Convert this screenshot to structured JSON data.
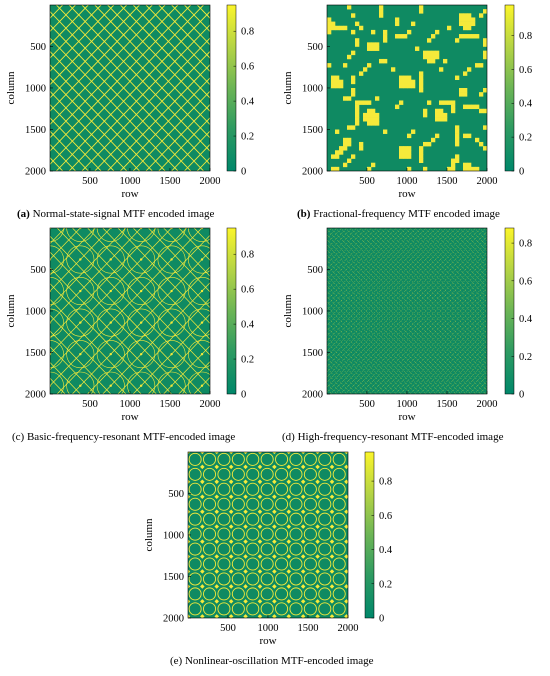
{
  "colors": {
    "background_green": "#0f8a62",
    "line_yellow": "#f5ea3b",
    "colorbar_bottom": "#00876a",
    "colorbar_top": "#fbf52a"
  },
  "chart_data": [
    {
      "type": "heatmap",
      "panel": "a",
      "caption_tag": "(a)",
      "caption_text": "Normal-state-signal MTF encoded image",
      "xlabel": "row",
      "ylabel": "column",
      "x_ticks": [
        "500",
        "1000",
        "1500",
        "2000"
      ],
      "y_ticks": [
        "500",
        "1000",
        "1500",
        "2000"
      ],
      "xlim": [
        1,
        2000
      ],
      "ylim": [
        1,
        2000
      ],
      "colorbar_ticks": [
        "0",
        "0.2",
        "0.4",
        "0.6",
        "0.8"
      ],
      "colorbar_range": [
        0,
        0.95
      ],
      "pattern": "diagonal-lattice",
      "lattice_period": 160
    },
    {
      "type": "heatmap",
      "panel": "b",
      "caption_tag": "(b)",
      "caption_text": "Fractional-frequency MTF encoded image",
      "xlabel": "row",
      "ylabel": "column",
      "x_ticks": [
        "500",
        "1000",
        "1500",
        "2000"
      ],
      "y_ticks": [
        "500",
        "1000",
        "1500",
        "2000"
      ],
      "xlim": [
        1,
        2000
      ],
      "ylim": [
        1,
        2000
      ],
      "colorbar_ticks": [
        "0",
        "0.2",
        "0.4",
        "0.6",
        "0.8"
      ],
      "colorbar_range": [
        0,
        0.98
      ],
      "pattern": "contour-blobs",
      "frequencies": [
        1.3,
        0.7,
        2.1
      ]
    },
    {
      "type": "heatmap",
      "panel": "c",
      "caption_tag": "(c)",
      "caption_text": "Basic-frequency-resonant MTF-encoded image",
      "xlabel": "row",
      "ylabel": "column",
      "x_ticks": [
        "500",
        "1000",
        "1500",
        "2000"
      ],
      "y_ticks": [
        "500",
        "1000",
        "1500",
        "2000"
      ],
      "xlim": [
        1,
        2000
      ],
      "ylim": [
        1,
        2000
      ],
      "colorbar_ticks": [
        "0",
        "0.2",
        "0.4",
        "0.6",
        "0.8"
      ],
      "colorbar_range": [
        0,
        0.95
      ],
      "pattern": "wavy-lattice",
      "lattice_period": 190
    },
    {
      "type": "heatmap",
      "panel": "d",
      "caption_tag": "(d)",
      "caption_text": "High-frequency-resonant MTF-encoded image",
      "xlabel": "row",
      "ylabel": "column",
      "x_ticks": [
        "500",
        "1000",
        "1500",
        "2000"
      ],
      "y_ticks": [
        "500",
        "1000",
        "1500",
        "2000"
      ],
      "xlim": [
        1,
        2000
      ],
      "ylim": [
        1,
        2000
      ],
      "colorbar_ticks": [
        "0",
        "0.2",
        "0.4",
        "0.6",
        "0.8"
      ],
      "colorbar_range": [
        0,
        0.88
      ],
      "pattern": "fine-dot-lattice",
      "lattice_period": 62
    },
    {
      "type": "heatmap",
      "panel": "e",
      "caption_tag": "(e)",
      "caption_text": "Nonlinear-oscillation MTF-encoded image",
      "xlabel": "row",
      "ylabel": "column",
      "x_ticks": [
        "500",
        "1000",
        "1500",
        "2000"
      ],
      "y_ticks": [
        "500",
        "1000",
        "1500",
        "2000"
      ],
      "xlim": [
        1,
        2000
      ],
      "ylim": [
        1,
        2000
      ],
      "colorbar_ticks": [
        "0",
        "0.2",
        "0.4",
        "0.6",
        "0.8"
      ],
      "colorbar_range": [
        0,
        0.97
      ],
      "pattern": "circle-lattice",
      "lattice_period": 180
    }
  ]
}
